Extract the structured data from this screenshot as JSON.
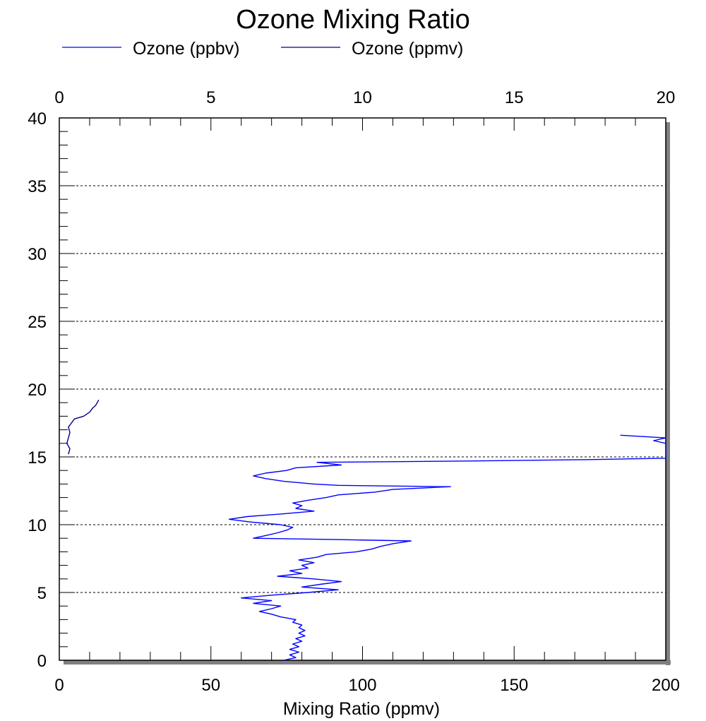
{
  "chart_data": {
    "type": "line",
    "title": "Ozone Mixing Ratio",
    "xlabel": "Mixing Ratio (ppmv)",
    "xlim": [
      0,
      200
    ],
    "x_ticks": [
      0,
      50,
      100,
      150,
      200
    ],
    "x2lim": [
      0,
      20
    ],
    "x2_ticks": [
      0,
      5,
      10,
      15,
      20
    ],
    "ylim": [
      0,
      40
    ],
    "y_ticks": [
      0,
      5,
      10,
      15,
      20,
      25,
      30,
      35,
      40
    ],
    "gridlines_y": [
      5,
      10,
      15,
      20,
      25,
      30,
      35
    ],
    "legend_position": "top-left",
    "series": [
      {
        "name": "Ozone (ppbv)",
        "axis": "bottom",
        "color": "#0000ff",
        "points": [
          [
            74,
            0.0
          ],
          [
            78,
            0.2
          ],
          [
            76,
            0.4
          ],
          [
            79,
            0.6
          ],
          [
            76,
            0.8
          ],
          [
            79,
            1.0
          ],
          [
            77,
            1.2
          ],
          [
            80,
            1.4
          ],
          [
            78,
            1.6
          ],
          [
            81,
            1.8
          ],
          [
            79,
            2.0
          ],
          [
            81,
            2.2
          ],
          [
            79,
            2.4
          ],
          [
            80,
            2.6
          ],
          [
            77,
            2.8
          ],
          [
            78,
            3.0
          ],
          [
            73,
            3.2
          ],
          [
            70,
            3.4
          ],
          [
            66,
            3.6
          ],
          [
            70,
            3.8
          ],
          [
            73,
            4.0
          ],
          [
            64,
            4.2
          ],
          [
            70,
            4.4
          ],
          [
            60,
            4.6
          ],
          [
            70,
            4.8
          ],
          [
            82,
            5.0
          ],
          [
            92,
            5.2
          ],
          [
            80,
            5.4
          ],
          [
            86,
            5.6
          ],
          [
            93,
            5.8
          ],
          [
            84,
            6.0
          ],
          [
            72,
            6.2
          ],
          [
            80,
            6.4
          ],
          [
            76,
            6.6
          ],
          [
            82,
            6.8
          ],
          [
            80,
            7.0
          ],
          [
            84,
            7.2
          ],
          [
            79,
            7.4
          ],
          [
            85,
            7.6
          ],
          [
            88,
            7.8
          ],
          [
            98,
            8.0
          ],
          [
            103,
            8.2
          ],
          [
            106,
            8.4
          ],
          [
            110,
            8.6
          ],
          [
            116,
            8.8
          ],
          [
            92,
            8.9
          ],
          [
            64,
            9.0
          ],
          [
            68,
            9.2
          ],
          [
            72,
            9.4
          ],
          [
            75,
            9.6
          ],
          [
            77,
            9.8
          ],
          [
            73,
            10.0
          ],
          [
            63,
            10.2
          ],
          [
            56,
            10.4
          ],
          [
            62,
            10.6
          ],
          [
            74,
            10.8
          ],
          [
            84,
            11.0
          ],
          [
            78,
            11.2
          ],
          [
            80,
            11.4
          ],
          [
            77,
            11.6
          ],
          [
            82,
            11.8
          ],
          [
            88,
            12.0
          ],
          [
            92,
            12.2
          ],
          [
            104,
            12.4
          ],
          [
            110,
            12.6
          ],
          [
            129,
            12.8
          ],
          [
            92,
            12.9
          ],
          [
            84,
            13.0
          ],
          [
            74,
            13.2
          ],
          [
            68,
            13.4
          ],
          [
            64,
            13.6
          ],
          [
            68,
            13.8
          ],
          [
            75,
            14.0
          ],
          [
            78,
            14.2
          ],
          [
            93,
            14.4
          ],
          [
            85,
            14.6
          ],
          [
            135,
            14.7
          ],
          [
            175,
            14.8
          ],
          [
            200,
            14.9
          ],
          [
            200,
            16.0
          ],
          [
            196,
            16.2
          ],
          [
            200,
            16.4
          ],
          [
            185,
            16.6
          ]
        ]
      },
      {
        "name": "Ozone (ppmv)",
        "axis": "top",
        "color": "#000080",
        "points": [
          [
            0.3,
            15.2
          ],
          [
            0.35,
            15.6
          ],
          [
            0.25,
            16.0
          ],
          [
            0.3,
            16.4
          ],
          [
            0.35,
            16.8
          ],
          [
            0.3,
            17.2
          ],
          [
            0.4,
            17.5
          ],
          [
            0.5,
            17.8
          ],
          [
            0.8,
            18.0
          ],
          [
            1.0,
            18.3
          ],
          [
            1.1,
            18.6
          ],
          [
            1.2,
            18.8
          ],
          [
            1.25,
            19.0
          ],
          [
            1.3,
            19.2
          ]
        ]
      }
    ]
  }
}
